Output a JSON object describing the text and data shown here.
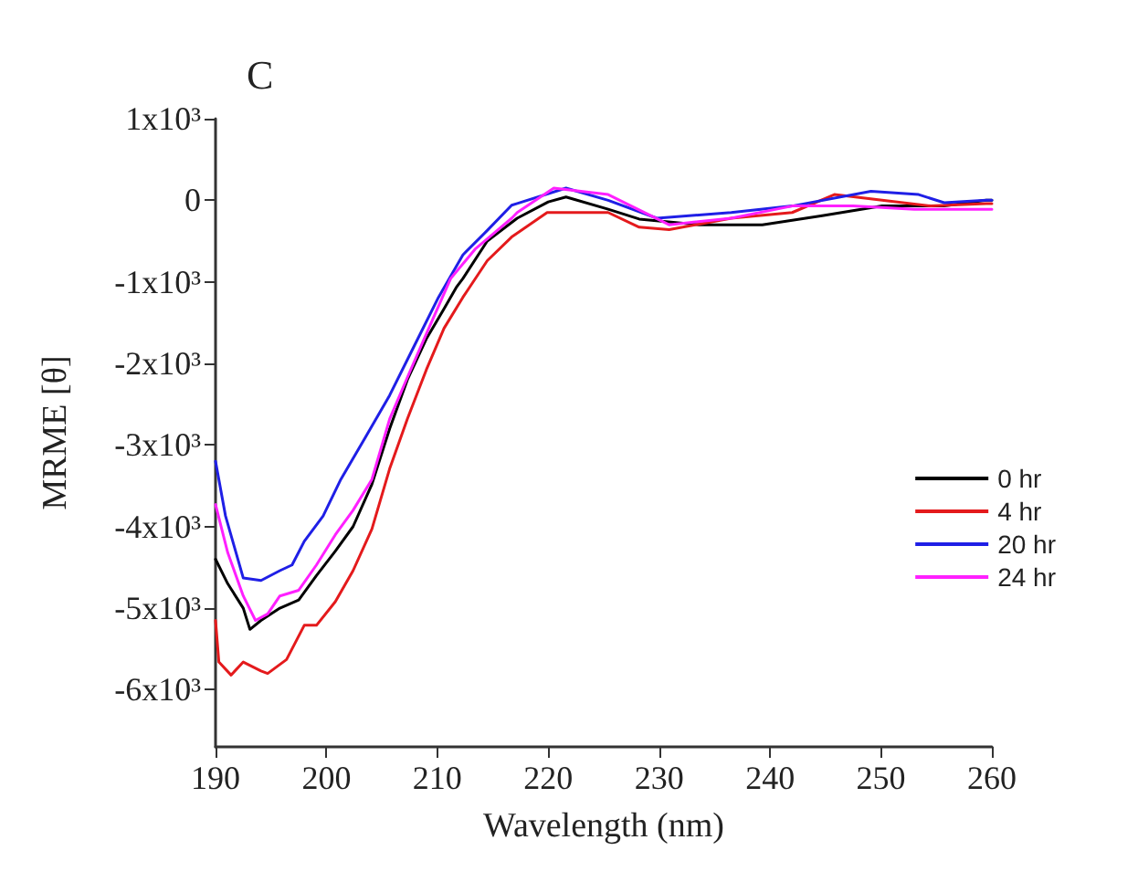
{
  "chart_data": {
    "type": "line",
    "xlabel": "Wavelength (nm)",
    "ylabel": "MRME [θ]",
    "annotations": [
      "C"
    ],
    "xlim": [
      190,
      260
    ],
    "xticks": [
      190,
      200,
      210,
      220,
      230,
      240,
      250,
      260
    ],
    "ylim": [
      -6700,
      1000
    ],
    "yticks": [
      {
        "value": 1000,
        "label": "1x10³"
      },
      0,
      {
        "value": -1000,
        "label": "-1x10³"
      },
      {
        "value": -2000,
        "label": "-2x10³"
      },
      {
        "value": -3000,
        "label": "-3x10³"
      },
      {
        "value": -4000,
        "label": "-4x10³"
      },
      {
        "value": -5000,
        "label": "-5x10³"
      },
      {
        "value": -6000,
        "label": "-6x10³"
      }
    ],
    "grid": false,
    "legend": "right",
    "marker": "none",
    "line_style": "solid",
    "series": [
      {
        "name": "0 hr",
        "color": "#000000",
        "x": [
          190,
          191.1,
          192.5,
          193.1,
          194.1,
          195.8,
          197.5,
          199.1,
          200.8,
          202.4,
          204.1,
          205.7,
          207.3,
          209,
          210.6,
          211.7,
          212.3,
          214.5,
          217.2,
          220,
          221.6,
          225.4,
          228.2,
          233.6,
          239.3,
          244.7,
          250.1,
          255.7,
          259.5,
          260
        ],
        "values": [
          -4400,
          -4700,
          -5000,
          -5260,
          -5150,
          -5000,
          -4900,
          -4600,
          -4300,
          -4000,
          -3480,
          -2800,
          -2200,
          -1700,
          -1330,
          -1070,
          -960,
          -500,
          -220,
          -20,
          40,
          -110,
          -230,
          -300,
          -300,
          -190,
          -70,
          -70,
          0,
          0
        ]
      },
      {
        "name": "4 hr",
        "color": "#e41a1c",
        "x": [
          190,
          190.3,
          191.4,
          192.5,
          194.1,
          194.7,
          196.4,
          198,
          199.1,
          200.8,
          202.4,
          204.1,
          205.7,
          207.3,
          209,
          210.6,
          212.3,
          214.5,
          216.7,
          219.9,
          225.4,
          228.2,
          230.9,
          236.5,
          242,
          245.8,
          250.1,
          254.5,
          259.5,
          260
        ],
        "values": [
          -5150,
          -5660,
          -5820,
          -5660,
          -5770,
          -5800,
          -5630,
          -5210,
          -5210,
          -4920,
          -4540,
          -4030,
          -3290,
          -2680,
          -2080,
          -1570,
          -1190,
          -740,
          -450,
          -150,
          -150,
          -330,
          -360,
          -220,
          -150,
          70,
          0,
          -70,
          -40,
          -40
        ]
      },
      {
        "name": "20 hr",
        "color": "#1f1fe6",
        "x": [
          190,
          190.9,
          192.5,
          194.1,
          195.8,
          196.9,
          198,
          199.7,
          201.3,
          203.5,
          205.7,
          207.9,
          210.1,
          212.3,
          214.5,
          216.7,
          217.2,
          221.6,
          225.4,
          229.8,
          236.5,
          242,
          249.1,
          253.4,
          255.7,
          259.5,
          260
        ],
        "values": [
          -3200,
          -3870,
          -4630,
          -4660,
          -4540,
          -4470,
          -4180,
          -3870,
          -3420,
          -2910,
          -2390,
          -1790,
          -1190,
          -670,
          -370,
          -60,
          -40,
          150,
          0,
          -220,
          -150,
          -70,
          110,
          70,
          -30,
          0,
          0
        ]
      },
      {
        "name": "24 hr",
        "color": "#ff20ff",
        "x": [
          190,
          191.1,
          192.5,
          193.6,
          194.7,
          195.8,
          197.5,
          199.1,
          200.8,
          202.4,
          204.1,
          205.7,
          207.3,
          209,
          211.2,
          213.4,
          216.7,
          217.2,
          220.5,
          225.4,
          230.9,
          236.5,
          242,
          247.5,
          253,
          259.5,
          260
        ],
        "values": [
          -3730,
          -4320,
          -4850,
          -5150,
          -5070,
          -4850,
          -4780,
          -4470,
          -4100,
          -3800,
          -3420,
          -2680,
          -2170,
          -1640,
          -960,
          -600,
          -220,
          -150,
          150,
          70,
          -300,
          -220,
          -70,
          -70,
          -110,
          -110,
          -110
        ]
      }
    ]
  }
}
